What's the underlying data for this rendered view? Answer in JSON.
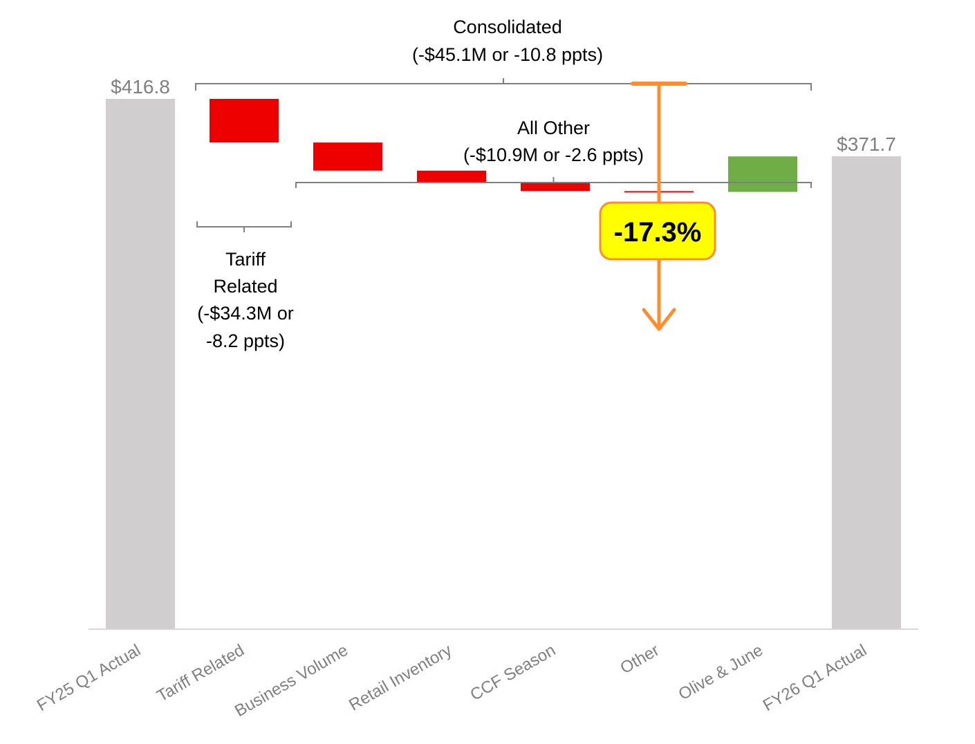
{
  "colors": {
    "total": "#d0cece",
    "decrease": "#ee0000",
    "increase": "#70ad47",
    "axis": "#d9d9d9",
    "bracket": "#7f7f7f",
    "value_label": "#7f7f7f",
    "tick_label": "#7f7f7f",
    "annotation_text": "#000000",
    "arrow": "#ff8c2e",
    "callout_fill": "#ffff00"
  },
  "chart_data": {
    "type": "waterfall",
    "categories": [
      "FY25 Q1 Actual",
      "Tariff Related",
      "Business Volume",
      "Retail Inventory",
      "CCF Season",
      "Other",
      "Olive & June",
      "FY26 Q1 Actual"
    ],
    "start_value": 416.8,
    "start_label": "$416.8",
    "end_value": 371.7,
    "end_label": "$371.7",
    "steps": [
      {
        "category": "Tariff Related",
        "value": -34.3
      },
      {
        "category": "Business Volume",
        "value": -22.1
      },
      {
        "category": "Retail Inventory",
        "value": -9.1
      },
      {
        "category": "CCF Season",
        "value": -7.0
      },
      {
        "category": "Other",
        "value": -0.6
      },
      {
        "category": "Olive & June",
        "value": 27.9
      }
    ],
    "ylim": [
      0,
      416.8
    ],
    "grid": false,
    "legend": "none",
    "annotations": {
      "consolidated": {
        "title": "Consolidated",
        "detail": "(-$45.1M or -10.8 ppts)",
        "span": [
          "Tariff Related",
          "Olive & June"
        ]
      },
      "all_other": {
        "title": "All Other",
        "detail": "(-$10.9M or -2.6 ppts)",
        "span": [
          "Business Volume",
          "Olive & June"
        ]
      },
      "tariff": {
        "lines": [
          "Tariff",
          "Related",
          "(-$34.3M or",
          "-8.2 ppts)"
        ],
        "span": [
          "Tariff Related",
          "Tariff Related"
        ]
      },
      "callout": {
        "text": "-17.3%"
      }
    }
  }
}
